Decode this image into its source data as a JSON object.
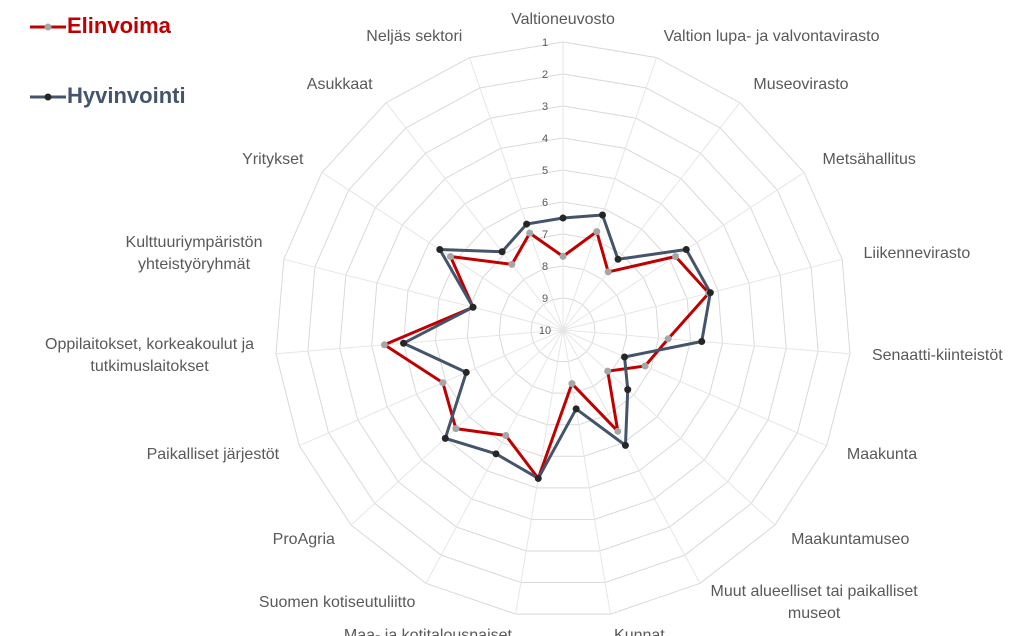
{
  "chart_data": {
    "type": "radar",
    "categories": [
      "Valtioneuvosto",
      "Valtion lupa- ja valvontavirasto",
      "Museovirasto",
      "Metsähallitus",
      "Liikennevirasto",
      "Senaatti-kiinteistöt",
      "Maakunta",
      "Maakuntamuseo",
      "Muut alueelliset tai paikalliset\nmuseot",
      "Kunnat",
      "Maa- ja kotitalousnaiset",
      "Suomen kotiseutuliitto",
      "ProAgria",
      "Paikalliset järjestöt",
      "Oppilaitokset, korkeakoulut ja\ntutkimuslaitokset",
      "Kulttuuriympäristön\nyhteistyöryhmät",
      "Yritykset",
      "Asukkaat",
      "Neljäs sektori"
    ],
    "series": [
      {
        "name": "Elinvoima",
        "color": "#c00000",
        "marker_color": "#a6a6a6",
        "values": [
          7.7,
          6.75,
          7.7,
          5.8,
          5.3,
          6.7,
          7.2,
          8.1,
          6.4,
          8.3,
          5.3,
          6.25,
          5.45,
          5.9,
          4.4,
          7.1,
          5.8,
          7.4,
          6.8
        ]
      },
      {
        "name": "Hyvinvointi",
        "color": "#44546a",
        "marker_color": "#262626",
        "values": [
          6.5,
          6.2,
          7.2,
          5.4,
          5.25,
          5.65,
          7.9,
          7.25,
          5.9,
          7.5,
          5.3,
          5.6,
          5.0,
          6.7,
          5.0,
          7.1,
          5.4,
          6.9,
          6.5
        ]
      }
    ],
    "ylim": [
      1,
      10
    ],
    "reverse": true,
    "yticks": [
      1,
      2,
      3,
      4,
      5,
      6,
      7,
      8,
      9,
      10
    ],
    "grid": true,
    "legend": "top-left"
  }
}
